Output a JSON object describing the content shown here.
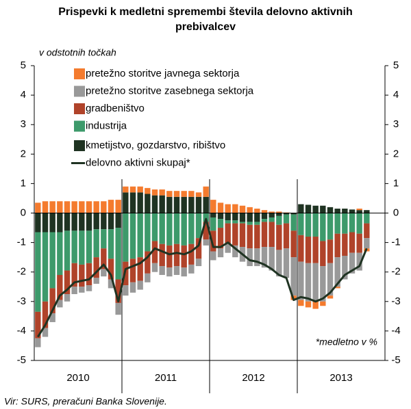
{
  "chart_data": {
    "type": "bar",
    "title": "Prispevki k medletni spremembi števila delovno aktivnih",
    "title_line2": "prebivalcev",
    "y_label": "v odstotnih točkah",
    "annotation": "*medletno v %",
    "source": "Vir: SURS, preračuni Banka Slovenije.",
    "x_groups": [
      "2010",
      "2011",
      "2012",
      "2013"
    ],
    "categories": [
      null,
      null,
      null,
      null,
      null,
      null,
      null,
      null,
      null,
      null,
      null,
      null,
      null,
      null,
      null,
      null,
      null,
      null,
      null,
      null,
      null,
      null,
      null,
      null,
      null,
      null,
      null,
      null,
      null,
      null,
      null,
      null,
      null,
      null,
      null,
      null,
      null,
      null,
      null,
      null,
      null,
      null,
      null,
      null,
      null,
      null
    ],
    "ylim": [
      -5,
      5
    ],
    "yticks": [
      -5,
      -4,
      -3,
      -2,
      -1,
      0,
      1,
      2,
      3,
      4,
      5
    ],
    "y2lim": [
      -5,
      5
    ],
    "y2ticks": [
      -5,
      -4,
      -3,
      -2,
      -1,
      0,
      1,
      2,
      3,
      4,
      5
    ],
    "series": [
      {
        "name": "pretežno storitve javnega sektorja",
        "type": "bar",
        "color": "#f47b2e",
        "values": [
          0.35,
          0.4,
          0.4,
          0.4,
          0.4,
          0.4,
          0.4,
          0.4,
          0.4,
          0.4,
          0.45,
          0.45,
          0.2,
          0.2,
          0.2,
          0.2,
          0.2,
          0.2,
          0.2,
          0.2,
          0.2,
          0.2,
          0.15,
          0.35,
          0.45,
          0.35,
          0.3,
          0.3,
          0.25,
          0.2,
          0.15,
          0.1,
          0.05,
          0.05,
          0.02,
          -0.15,
          -0.2,
          -0.2,
          -0.25,
          -0.15,
          -0.1,
          -0.05,
          0,
          0,
          0.05,
          -0.1
        ]
      },
      {
        "name": "pretežno storitve zasebnega sektorja",
        "type": "bar",
        "color": "#999999",
        "values": [
          -0.3,
          -0.3,
          -0.3,
          -0.25,
          -0.25,
          -0.25,
          -0.2,
          -0.2,
          -0.2,
          -0.25,
          -0.3,
          -0.4,
          -0.35,
          -0.35,
          -0.3,
          -0.3,
          -0.3,
          -0.3,
          -0.3,
          -0.3,
          -0.3,
          -0.3,
          -0.25,
          -0.2,
          -0.3,
          -0.3,
          -0.3,
          -0.4,
          -0.5,
          -0.6,
          -0.6,
          -0.7,
          -0.8,
          -0.9,
          -1.0,
          -1.3,
          -1.3,
          -1.3,
          -1.3,
          -1.2,
          -1.1,
          -1.0,
          -0.8,
          -0.7,
          -0.6,
          -0.35
        ]
      },
      {
        "name": "gradbeništvo",
        "type": "bar",
        "color": "#b0432a",
        "values": [
          -0.9,
          -0.9,
          -0.85,
          -0.85,
          -0.8,
          -0.8,
          -0.75,
          -0.75,
          -0.7,
          -0.7,
          -0.7,
          -0.8,
          -0.8,
          -0.8,
          -0.8,
          -0.75,
          -0.75,
          -0.75,
          -0.75,
          -0.75,
          -0.75,
          -0.7,
          -0.7,
          -0.6,
          -0.7,
          -0.7,
          -0.7,
          -0.75,
          -0.8,
          -0.8,
          -0.8,
          -0.85,
          -0.85,
          -0.85,
          -0.85,
          -0.9,
          -0.9,
          -0.9,
          -0.9,
          -0.85,
          -0.8,
          -0.8,
          -0.75,
          -0.7,
          -0.65,
          -0.5
        ]
      },
      {
        "name": "industrija",
        "type": "bar",
        "color": "#3d9a6b",
        "values": [
          -2.7,
          -2.35,
          -1.9,
          -1.45,
          -1.35,
          -1.1,
          -1.15,
          -1.1,
          -0.95,
          -0.65,
          -1.0,
          -1.75,
          -1.65,
          -1.55,
          -1.5,
          -1.3,
          -0.95,
          -1.05,
          -1.1,
          -1.05,
          -1.1,
          -1.05,
          -0.85,
          -0.3,
          -0.45,
          -0.3,
          -0.1,
          -0.1,
          -0.05,
          -0.1,
          -0.1,
          -0.1,
          -0.15,
          -0.3,
          -0.3,
          -0.55,
          -0.75,
          -0.8,
          -0.8,
          -0.95,
          -0.9,
          -0.7,
          -0.7,
          -0.65,
          -0.7,
          -0.35
        ]
      },
      {
        "name": "kmetijstvo, gozdarstvo, ribištvo",
        "type": "bar",
        "color": "#1f3322",
        "values": [
          -0.65,
          -0.65,
          -0.65,
          -0.65,
          -0.6,
          -0.6,
          -0.6,
          -0.6,
          -0.55,
          -0.55,
          -0.55,
          -0.5,
          0.7,
          0.7,
          0.7,
          0.65,
          0.6,
          0.6,
          0.55,
          0.55,
          0.55,
          0.55,
          0.55,
          0.55,
          -0.15,
          -0.2,
          -0.25,
          -0.25,
          -0.3,
          -0.3,
          -0.3,
          -0.2,
          -0.15,
          -0.1,
          -0.05,
          -0.05,
          0.3,
          0.28,
          0.25,
          0.25,
          0.2,
          0.15,
          0.15,
          0.12,
          0.1,
          0.1
        ]
      },
      {
        "name": "delovno aktivni skupaj*",
        "type": "line",
        "color": "#1f3322",
        "values": [
          -4.2,
          -3.8,
          -3.3,
          -2.8,
          -2.6,
          -2.35,
          -2.3,
          -2.25,
          -2.0,
          -1.75,
          -2.1,
          -3.0,
          -1.9,
          -1.8,
          -1.7,
          -1.5,
          -1.2,
          -1.3,
          -1.4,
          -1.35,
          -1.4,
          -1.3,
          -1.1,
          -0.2,
          -1.15,
          -1.15,
          -1.0,
          -1.2,
          -1.4,
          -1.6,
          -1.65,
          -1.75,
          -1.9,
          -2.1,
          -2.2,
          -2.95,
          -2.85,
          -2.9,
          -3.0,
          -2.9,
          -2.7,
          -2.4,
          -2.1,
          -1.95,
          -1.8,
          -1.2
        ]
      }
    ]
  }
}
